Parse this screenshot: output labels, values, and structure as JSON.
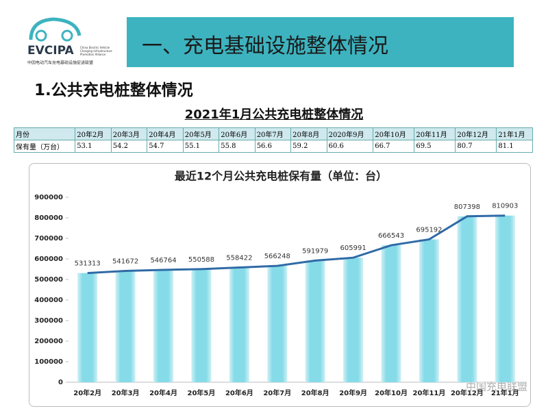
{
  "logo": {
    "name": "EVCIPA",
    "subtitle_en": [
      "China Electric Vehicle",
      "Charging Infrastructure",
      "Promotion Alliance"
    ],
    "subtitle_cn": "中国电动汽车充电基础设施促进联盟"
  },
  "header": {
    "title": "一、充电基础设施整体情况"
  },
  "section_title": "1.公共充电桩整体情况",
  "table": {
    "title": "2021年1月公共充电桩整体情况",
    "header": [
      "月份",
      "20年2月",
      "20年3月",
      "20年4月",
      "20年5月",
      "20年6月",
      "20年7月",
      "20年8月",
      "2020年9月",
      "20年10月",
      "20年11月",
      "20年12月",
      "21年1月"
    ],
    "rows": [
      [
        "保有量（万台）",
        53.1,
        54.2,
        54.7,
        55.1,
        55.8,
        56.6,
        59.2,
        60.6,
        66.7,
        69.5,
        80.7,
        81.1
      ]
    ]
  },
  "chart_data": {
    "type": "bar",
    "title": "最近12个月公共充电桩保有量（单位：台）",
    "categories": [
      "20年2月",
      "20年3月",
      "20年4月",
      "20年5月",
      "20年6月",
      "20年7月",
      "20年8月",
      "20年9月",
      "20年10月",
      "20年11月",
      "20年12月",
      "21年1月"
    ],
    "values": [
      531313,
      541672,
      546764,
      550588,
      558422,
      566248,
      591979,
      605991,
      666543,
      695192,
      807398,
      810903
    ],
    "color": "#86dbe8",
    "line_color": "#2f6aa6",
    "show_line": true,
    "show_value_labels": true,
    "ylim": [
      0,
      900000
    ],
    "yticks": [
      0,
      100000,
      200000,
      300000,
      400000,
      500000,
      600000,
      700000,
      800000,
      900000
    ],
    "grid": false
  },
  "watermark": "中国充电联盟"
}
